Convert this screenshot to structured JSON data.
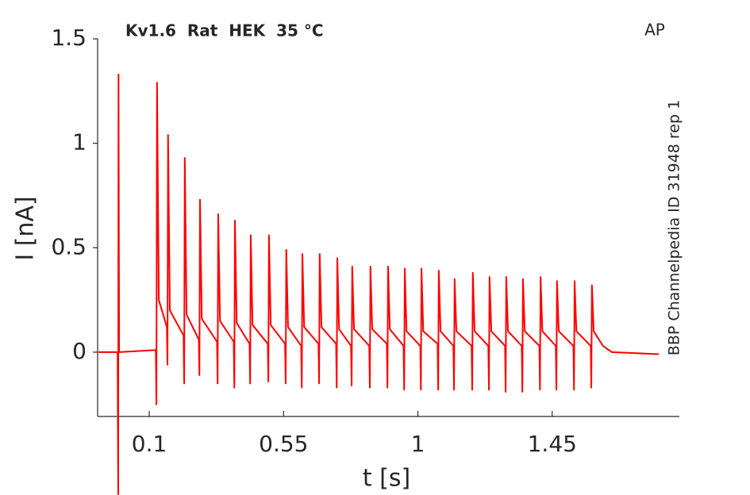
{
  "chart_data": {
    "type": "line",
    "title": "Kv1.6  Rat  HEK  35 °C",
    "protocol": "AP",
    "source": "BBP Channelpedia ID 31948 rep 1",
    "x_label": "t [s]",
    "y_label": "I [nA]",
    "xlim": [
      -0.073,
      1.876
    ],
    "ylim": [
      -0.308,
      1.5
    ],
    "xticks": [
      0.1,
      0.55,
      1,
      1.45
    ],
    "yticks": [
      0,
      0.5,
      1,
      1.5
    ],
    "grid": false,
    "series": [
      {
        "name": "I",
        "color": "#ff0000",
        "x": [
          -0.07,
          -0.006,
          -0.004,
          -0.003,
          -0.001,
          0.122,
          0.124,
          0.126,
          0.132,
          0.159,
          0.161,
          0.163,
          0.169,
          0.215,
          0.217,
          0.219,
          0.225,
          0.266,
          0.268,
          0.27,
          0.276,
          0.327,
          0.329,
          0.331,
          0.337,
          0.383,
          0.385,
          0.387,
          0.393,
          0.436,
          0.438,
          0.44,
          0.446,
          0.497,
          0.499,
          0.501,
          0.507,
          0.555,
          0.557,
          0.559,
          0.565,
          0.609,
          0.611,
          0.613,
          0.619,
          0.667,
          0.669,
          0.671,
          0.677,
          0.726,
          0.728,
          0.73,
          0.736,
          0.776,
          0.778,
          0.78,
          0.786,
          0.837,
          0.839,
          0.841,
          0.847,
          0.896,
          0.898,
          0.9,
          0.906,
          0.952,
          0.954,
          0.956,
          0.962,
          1.008,
          1.01,
          1.012,
          1.018,
          1.066,
          1.068,
          1.07,
          1.076,
          1.119,
          1.121,
          1.123,
          1.129,
          1.18,
          1.182,
          1.184,
          1.19,
          1.236,
          1.238,
          1.24,
          1.246,
          1.292,
          1.294,
          1.296,
          1.302,
          1.348,
          1.35,
          1.352,
          1.358,
          1.407,
          1.409,
          1.411,
          1.417,
          1.462,
          1.464,
          1.466,
          1.472,
          1.521,
          1.523,
          1.525,
          1.531,
          1.579,
          1.581,
          1.583,
          1.589,
          1.62,
          1.65,
          1.807
        ],
        "values": [
          0.0,
          0.0,
          -0.68,
          1.33,
          0.0,
          0.01,
          -0.25,
          1.29,
          0.25,
          0.12,
          -0.06,
          1.04,
          0.2,
          0.08,
          -0.15,
          0.93,
          0.18,
          0.06,
          -0.11,
          0.73,
          0.16,
          0.05,
          -0.15,
          0.66,
          0.15,
          0.05,
          -0.17,
          0.63,
          0.14,
          0.04,
          -0.15,
          0.56,
          0.13,
          0.04,
          -0.14,
          0.56,
          0.13,
          0.04,
          -0.15,
          0.49,
          0.12,
          0.03,
          -0.17,
          0.47,
          0.12,
          0.04,
          -0.15,
          0.47,
          0.12,
          0.04,
          -0.17,
          0.45,
          0.11,
          0.03,
          -0.16,
          0.41,
          0.11,
          0.03,
          -0.17,
          0.41,
          0.11,
          0.04,
          -0.17,
          0.41,
          0.11,
          0.03,
          -0.18,
          0.4,
          0.1,
          0.03,
          -0.18,
          0.4,
          0.1,
          0.04,
          -0.18,
          0.39,
          0.1,
          0.03,
          -0.18,
          0.35,
          0.1,
          0.03,
          -0.18,
          0.38,
          0.1,
          0.03,
          -0.18,
          0.36,
          0.1,
          0.03,
          -0.19,
          0.36,
          0.1,
          0.03,
          -0.19,
          0.35,
          0.1,
          0.03,
          -0.18,
          0.36,
          0.1,
          0.03,
          -0.18,
          0.34,
          0.1,
          0.03,
          -0.18,
          0.34,
          0.1,
          0.03,
          -0.17,
          0.32,
          0.1,
          0.03,
          0.0,
          -0.01
        ]
      }
    ]
  }
}
